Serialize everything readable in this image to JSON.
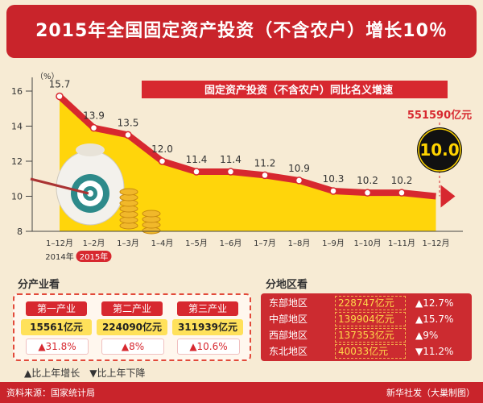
{
  "title": "2015年全国固定资产投资（不含农户）增长10％",
  "chart_data": {
    "type": "area",
    "series_label": "固定资产投资（不含农户）同比名义增速",
    "y_unit": "（%）",
    "ylim": [
      8,
      16
    ],
    "yticks": [
      8,
      10,
      12,
      14,
      16
    ],
    "categories": [
      "1–12月",
      "1–2月",
      "1–3月",
      "1–4月",
      "1–5月",
      "1–6月",
      "1–7月",
      "1–8月",
      "1–9月",
      "1–10月",
      "1–11月",
      "1–12月"
    ],
    "values": [
      15.7,
      13.9,
      13.5,
      12.0,
      11.4,
      11.4,
      11.2,
      10.9,
      10.3,
      10.2,
      10.2,
      10.0
    ],
    "value_labels": [
      "15.7",
      "13.9",
      "13.5",
      "12.0",
      "11.4",
      "11.4",
      "11.2",
      "10.9",
      "10.3",
      "10.2",
      "10.2",
      "10.0"
    ],
    "year_labels": {
      "first": "2014年",
      "rest": "2015年"
    },
    "total_label": "551590亿元",
    "highlight_value": "10.0"
  },
  "by_industry": {
    "heading": "分产业看",
    "items": [
      {
        "name": "第一产业",
        "value": "15561亿元",
        "growth": "▲31.8%"
      },
      {
        "name": "第二产业",
        "value": "224090亿元",
        "growth": "▲8%"
      },
      {
        "name": "第三产业",
        "value": "311939亿元",
        "growth": "▲10.6%"
      }
    ],
    "legend": "▲比上年增长　▼比上年下降"
  },
  "by_region": {
    "heading": "分地区看",
    "rows": [
      {
        "name": "东部地区",
        "value": "228747亿元",
        "growth": "▲12.7%"
      },
      {
        "name": "中部地区",
        "value": "139904亿元",
        "growth": "▲15.7%"
      },
      {
        "name": "西部地区",
        "value": "137353亿元",
        "growth": "▲9%"
      },
      {
        "name": "东北地区",
        "value": "40033亿元",
        "growth": "▼11.2%"
      }
    ]
  },
  "footer": {
    "source": "资料来源：国家统计局",
    "credit": "新华社发（大巢制图）"
  },
  "colors": {
    "red": "#d7282f",
    "yellow": "#ffd400",
    "background": "#f7ebd4"
  }
}
